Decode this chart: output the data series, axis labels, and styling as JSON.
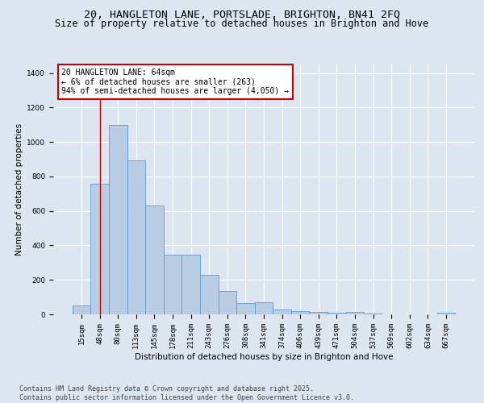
{
  "title_line1": "20, HANGLETON LANE, PORTSLADE, BRIGHTON, BN41 2FQ",
  "title_line2": "Size of property relative to detached houses in Brighton and Hove",
  "xlabel": "Distribution of detached houses by size in Brighton and Hove",
  "ylabel": "Number of detached properties",
  "categories": [
    "15sqm",
    "48sqm",
    "80sqm",
    "113sqm",
    "145sqm",
    "178sqm",
    "211sqm",
    "243sqm",
    "276sqm",
    "308sqm",
    "341sqm",
    "374sqm",
    "406sqm",
    "439sqm",
    "471sqm",
    "504sqm",
    "537sqm",
    "569sqm",
    "602sqm",
    "634sqm",
    "667sqm"
  ],
  "values": [
    50,
    760,
    1100,
    895,
    630,
    345,
    345,
    230,
    135,
    65,
    70,
    30,
    20,
    15,
    10,
    12,
    3,
    0,
    0,
    0,
    10
  ],
  "bar_color": "#b8cce4",
  "bar_edge_color": "#5b9bd5",
  "marker_label": "20 HANGLETON LANE: 64sqm\n← 6% of detached houses are smaller (263)\n94% of semi-detached houses are larger (4,050) →",
  "annotation_box_color": "#ffffff",
  "annotation_box_edge_color": "#cc0000",
  "vline_color": "#cc0000",
  "vline_x_index": 1,
  "ylim": [
    0,
    1450
  ],
  "yticks": [
    0,
    200,
    400,
    600,
    800,
    1000,
    1200,
    1400
  ],
  "bg_color": "#dde5f0",
  "plot_bg_color": "#dde5f0",
  "footer": "Contains HM Land Registry data © Crown copyright and database right 2025.\nContains public sector information licensed under the Open Government Licence v3.0.",
  "title_fontsize": 9.5,
  "subtitle_fontsize": 8.5,
  "axis_label_fontsize": 7.5,
  "tick_fontsize": 6.5,
  "annotation_fontsize": 7,
  "footer_fontsize": 6.0
}
